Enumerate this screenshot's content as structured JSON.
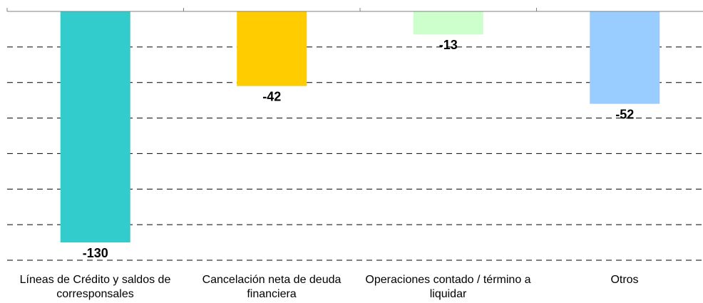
{
  "chart_data": {
    "type": "bar",
    "categories": [
      "Líneas de Crédito y saldos de corresponsales",
      "Cancelación neta de deuda financiera",
      "Operaciones contado / término a liquidar",
      "Otros"
    ],
    "values": [
      -130,
      -42,
      -13,
      -52
    ],
    "colors": [
      "#33cccc",
      "#ffcc00",
      "#ccffcc",
      "#99ccff"
    ],
    "ylim": [
      -140,
      0
    ],
    "yticks": [
      0,
      -20,
      -40,
      -60,
      -80,
      -100,
      -120,
      -140
    ],
    "grid": true
  }
}
